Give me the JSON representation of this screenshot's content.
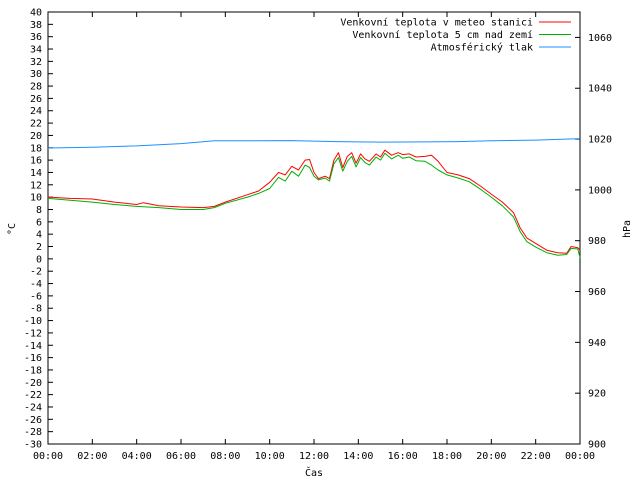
{
  "chart_data": {
    "type": "line",
    "xlabel": "Čas",
    "ylabel": "°C",
    "y2label": "hPa",
    "xlim": [
      0,
      24
    ],
    "ylim": [
      -30,
      40
    ],
    "y2lim": [
      900,
      1070
    ],
    "x_ticks": [
      "00:00",
      "02:00",
      "04:00",
      "06:00",
      "08:00",
      "10:00",
      "12:00",
      "14:00",
      "16:00",
      "18:00",
      "20:00",
      "22:00",
      "00:00"
    ],
    "y_ticks": [
      40,
      38,
      36,
      34,
      32,
      30,
      28,
      26,
      24,
      22,
      20,
      18,
      16,
      14,
      12,
      10,
      8,
      6,
      4,
      2,
      0,
      -2,
      -4,
      -6,
      -8,
      -10,
      -12,
      -14,
      -16,
      -18,
      -20,
      -22,
      -24,
      -26,
      -28,
      -30
    ],
    "y2_ticks": [
      1060,
      1040,
      1020,
      1000,
      980,
      960,
      940,
      920,
      900
    ],
    "grid": false,
    "legend_position": "top-right",
    "series": [
      {
        "name": "Venkovní teplota v meteo stanici",
        "axis": "left",
        "color": "#ff0000",
        "points": [
          [
            0,
            10
          ],
          [
            1,
            9.8
          ],
          [
            2,
            9.7
          ],
          [
            3,
            9.2
          ],
          [
            4,
            8.8
          ],
          [
            4.3,
            9.1
          ],
          [
            5,
            8.6
          ],
          [
            6,
            8.4
          ],
          [
            7,
            8.3
          ],
          [
            7.5,
            8.5
          ],
          [
            8,
            9.2
          ],
          [
            9,
            10.4
          ],
          [
            9.5,
            11
          ],
          [
            10,
            12.4
          ],
          [
            10.4,
            14
          ],
          [
            10.7,
            13.6
          ],
          [
            11,
            15
          ],
          [
            11.3,
            14.4
          ],
          [
            11.6,
            16
          ],
          [
            11.8,
            16.1
          ],
          [
            12,
            14
          ],
          [
            12.2,
            13
          ],
          [
            12.5,
            13.4
          ],
          [
            12.7,
            13
          ],
          [
            12.9,
            16
          ],
          [
            13.1,
            17.2
          ],
          [
            13.3,
            14.8
          ],
          [
            13.5,
            16.6
          ],
          [
            13.7,
            17.2
          ],
          [
            13.9,
            15.5
          ],
          [
            14.1,
            17
          ],
          [
            14.3,
            16.2
          ],
          [
            14.5,
            15.8
          ],
          [
            14.8,
            17
          ],
          [
            15,
            16.5
          ],
          [
            15.2,
            17.6
          ],
          [
            15.5,
            16.8
          ],
          [
            15.8,
            17.2
          ],
          [
            16,
            16.9
          ],
          [
            16.3,
            17
          ],
          [
            16.6,
            16.5
          ],
          [
            17,
            16.6
          ],
          [
            17.3,
            16.8
          ],
          [
            17.6,
            15.8
          ],
          [
            18,
            14
          ],
          [
            18.5,
            13.6
          ],
          [
            19,
            13
          ],
          [
            19.5,
            11.8
          ],
          [
            20,
            10.5
          ],
          [
            20.5,
            9.2
          ],
          [
            21,
            7.5
          ],
          [
            21.3,
            5
          ],
          [
            21.6,
            3.4
          ],
          [
            22,
            2.5
          ],
          [
            22.5,
            1.4
          ],
          [
            23,
            1
          ],
          [
            23.4,
            0.9
          ],
          [
            23.6,
            2
          ],
          [
            23.9,
            1.8
          ],
          [
            24,
            1.4
          ]
        ]
      },
      {
        "name": "Venkovní teplota 5 cm nad zemí",
        "axis": "left",
        "color": "#00b000",
        "points": [
          [
            0,
            9.8
          ],
          [
            1,
            9.5
          ],
          [
            2,
            9.2
          ],
          [
            3,
            8.8
          ],
          [
            4,
            8.5
          ],
          [
            5,
            8.3
          ],
          [
            6,
            8
          ],
          [
            7,
            8
          ],
          [
            7.5,
            8.3
          ],
          [
            8,
            9
          ],
          [
            9,
            10
          ],
          [
            9.5,
            10.6
          ],
          [
            10,
            11.4
          ],
          [
            10.4,
            13.2
          ],
          [
            10.7,
            12.6
          ],
          [
            11,
            14.2
          ],
          [
            11.3,
            13.4
          ],
          [
            11.6,
            15.2
          ],
          [
            11.8,
            14.8
          ],
          [
            12,
            13.4
          ],
          [
            12.2,
            12.8
          ],
          [
            12.5,
            13.1
          ],
          [
            12.7,
            12.6
          ],
          [
            12.9,
            15.4
          ],
          [
            13.1,
            16.4
          ],
          [
            13.3,
            14.2
          ],
          [
            13.5,
            15.8
          ],
          [
            13.7,
            16.6
          ],
          [
            13.9,
            14.9
          ],
          [
            14.1,
            16.4
          ],
          [
            14.3,
            15.6
          ],
          [
            14.5,
            15.2
          ],
          [
            14.8,
            16.5
          ],
          [
            15,
            16
          ],
          [
            15.2,
            17.1
          ],
          [
            15.5,
            16.2
          ],
          [
            15.8,
            16.8
          ],
          [
            16,
            16.3
          ],
          [
            16.3,
            16.5
          ],
          [
            16.6,
            15.9
          ],
          [
            17,
            15.8
          ],
          [
            17.3,
            15.2
          ],
          [
            17.6,
            14.4
          ],
          [
            18,
            13.6
          ],
          [
            18.5,
            13.1
          ],
          [
            19,
            12.5
          ],
          [
            19.5,
            11.3
          ],
          [
            20,
            10
          ],
          [
            20.5,
            8.6
          ],
          [
            21,
            6.8
          ],
          [
            21.3,
            4.4
          ],
          [
            21.6,
            2.8
          ],
          [
            22,
            1.9
          ],
          [
            22.5,
            1
          ],
          [
            23,
            0.6
          ],
          [
            23.4,
            0.7
          ],
          [
            23.6,
            1.7
          ],
          [
            23.9,
            1.6
          ],
          [
            24,
            0.2
          ]
        ]
      },
      {
        "name": "Atmosférický tlak",
        "axis": "right",
        "color": "#1e90ff",
        "points": [
          [
            0,
            1016.5
          ],
          [
            2,
            1016.8
          ],
          [
            4,
            1017.3
          ],
          [
            6,
            1018.2
          ],
          [
            7.5,
            1019.3
          ],
          [
            9,
            1019.3
          ],
          [
            11,
            1019.4
          ],
          [
            13,
            1019
          ],
          [
            15,
            1018.8
          ],
          [
            17,
            1018.9
          ],
          [
            18.5,
            1019
          ],
          [
            20,
            1019.3
          ],
          [
            22,
            1019.6
          ],
          [
            24,
            1020.2
          ]
        ]
      }
    ]
  }
}
